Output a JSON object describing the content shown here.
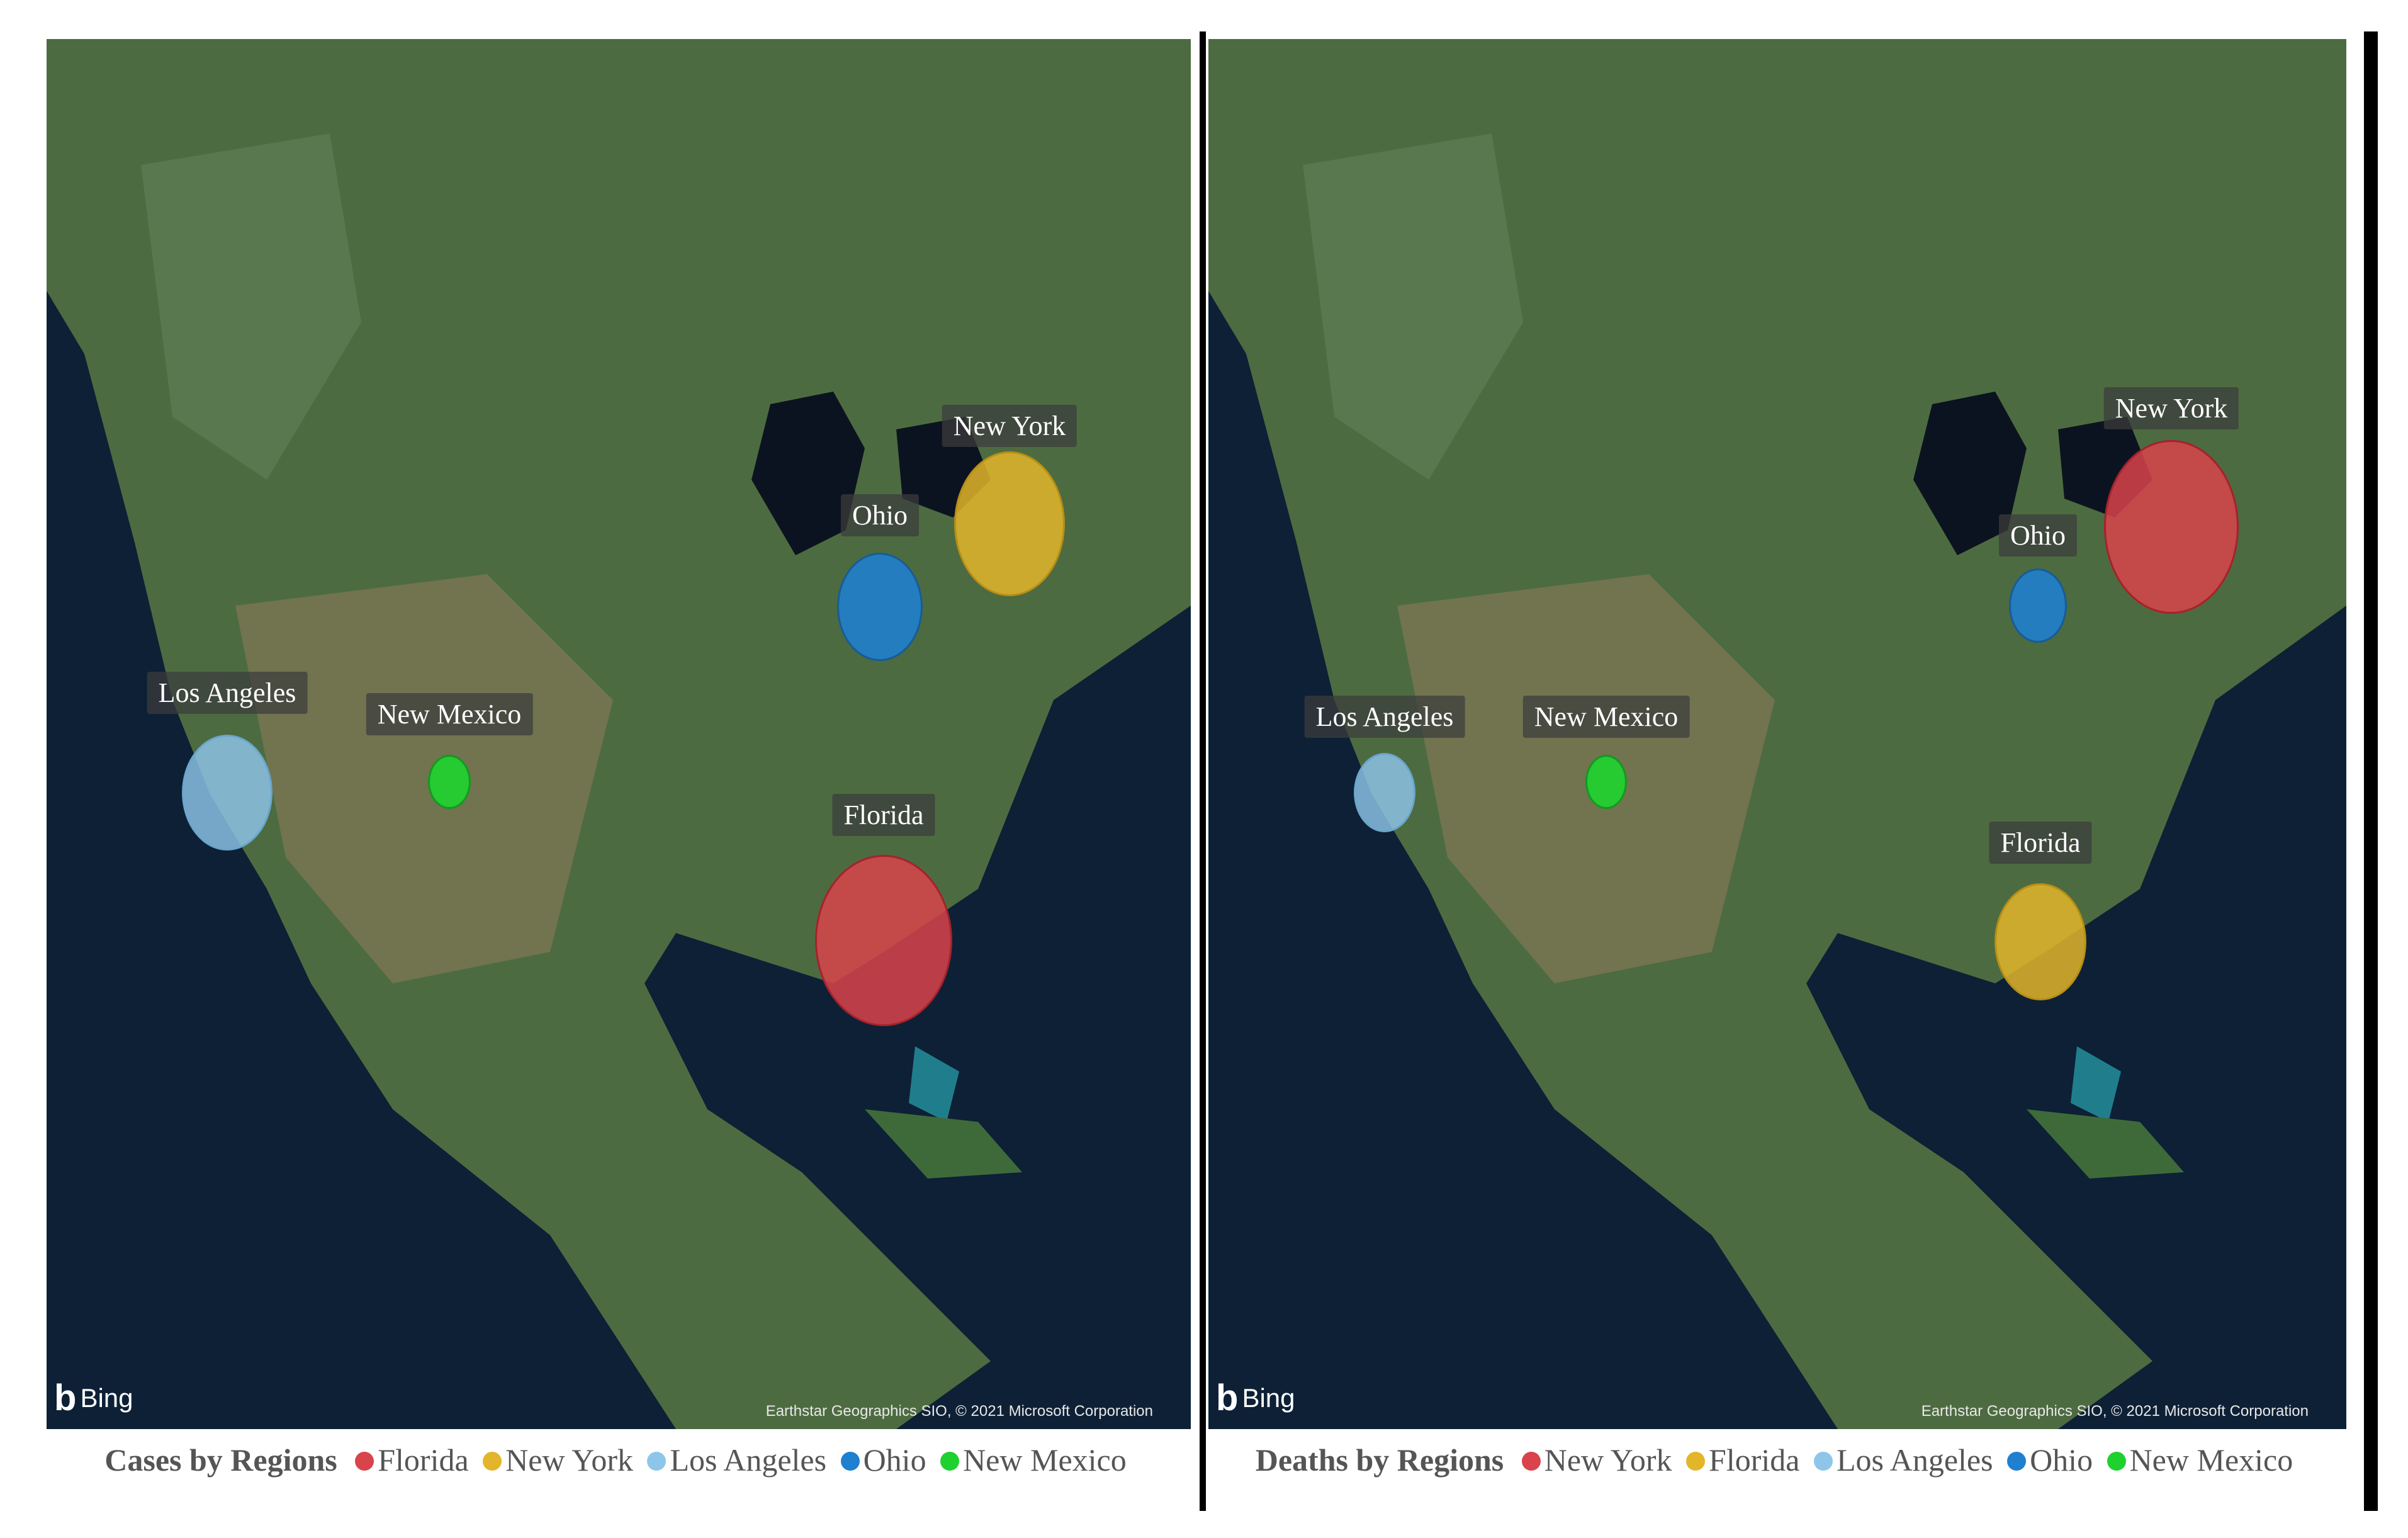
{
  "colors": {
    "florida": "#d9434b",
    "new_york": "#e3b52b",
    "los_angeles": "#8ec6ea",
    "ohio": "#1f7fd0",
    "new_mexico": "#1fd12f"
  },
  "left": {
    "legend_title": "Cases by Regions",
    "legend": [
      "Florida",
      "New York",
      "Los Angeles",
      "Ohio",
      "New Mexico"
    ],
    "labels": {
      "new_york": "New York",
      "ohio": "Ohio",
      "los_angeles": "Los Angeles",
      "new_mexico": "New Mexico",
      "florida": "Florida"
    },
    "bing": "Bing",
    "attribution": "Earthstar Geographics SIO, © 2021 Microsoft Corporation"
  },
  "right": {
    "legend_title": "Deaths by Regions",
    "legend": [
      "New York",
      "Florida",
      "Los Angeles",
      "Ohio",
      "New Mexico"
    ],
    "labels": {
      "new_york": "New York",
      "ohio": "Ohio",
      "los_angeles": "Los Angeles",
      "new_mexico": "New Mexico",
      "florida": "Florida"
    },
    "bing": "Bing",
    "attribution": "Earthstar Geographics SIO, © 2021 Microsoft Corporation"
  }
}
